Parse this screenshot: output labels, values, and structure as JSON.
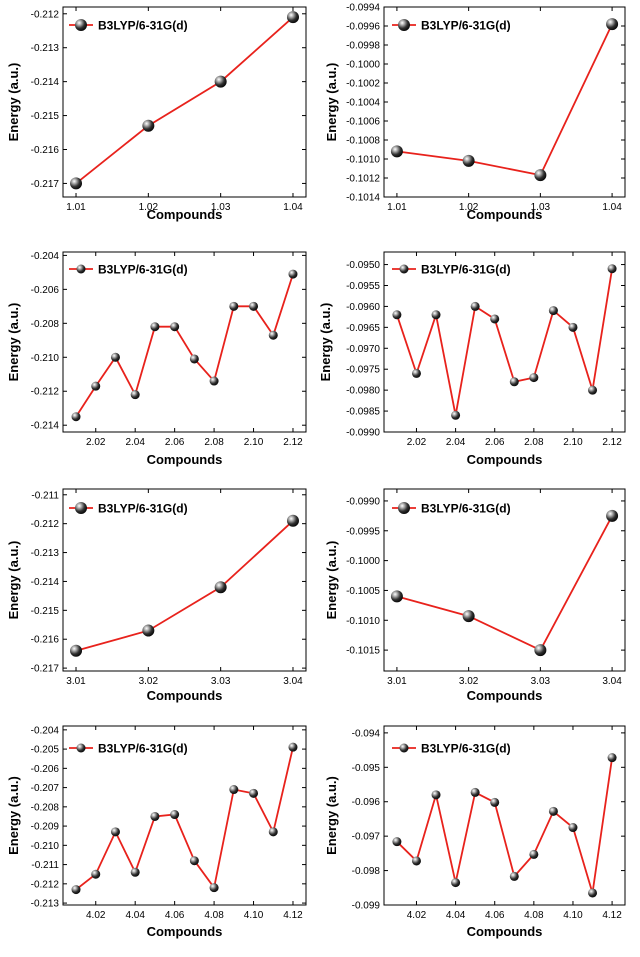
{
  "chart_data": [
    {
      "type": "line",
      "legend": "B3LYP/6-31G(d)",
      "xlabel": "Compounds",
      "ylabel": "Energy (a.u.)",
      "x_ticks": [
        "1.01",
        "1.02",
        "1.03",
        "1.04"
      ],
      "y_ticks": [
        "-0.217",
        "-0.216",
        "-0.215",
        "-0.214",
        "-0.213",
        "-0.212"
      ],
      "ylim": [
        -0.2174,
        -0.2118
      ],
      "x": [
        1.01,
        1.02,
        1.03,
        1.04
      ],
      "values": [
        -0.217,
        -0.2153,
        -0.214,
        -0.2121
      ],
      "marker": "large",
      "legend_position": "top-left"
    },
    {
      "type": "line",
      "legend": "B3LYP/6-31G(d)",
      "xlabel": "Compounds",
      "ylabel": "Energy (a.u.)",
      "x_ticks": [
        "1.01",
        "1.02",
        "1.03",
        "1.04"
      ],
      "y_ticks": [
        "-0.1014",
        "-0.1012",
        "-0.1010",
        "-0.1008",
        "-0.1006",
        "-0.1004",
        "-0.1002",
        "-0.1000",
        "-0.0998",
        "-0.0996",
        "-0.0994"
      ],
      "ylim": [
        -0.1014,
        -0.0994
      ],
      "x": [
        1.01,
        1.02,
        1.03,
        1.04
      ],
      "values": [
        -0.10092,
        -0.10102,
        -0.10117,
        -0.09958
      ],
      "marker": "large",
      "legend_position": "top-left"
    },
    {
      "type": "line",
      "legend": "B3LYP/6-31G(d)",
      "xlabel": "Compounds",
      "ylabel": "Energy (a.u.)",
      "x_ticks": [
        "2.02",
        "2.04",
        "2.06",
        "2.08",
        "2.10",
        "2.12"
      ],
      "y_ticks": [
        "-0.214",
        "-0.212",
        "-0.210",
        "-0.208",
        "-0.206",
        "-0.204"
      ],
      "ylim": [
        -0.2144,
        -0.2038
      ],
      "x": [
        2.01,
        2.02,
        2.03,
        2.04,
        2.05,
        2.06,
        2.07,
        2.08,
        2.09,
        2.1,
        2.11,
        2.12
      ],
      "values": [
        -0.2135,
        -0.2117,
        -0.21,
        -0.2122,
        -0.2082,
        -0.2082,
        -0.2101,
        -0.2114,
        -0.207,
        -0.207,
        -0.2087,
        -0.2051
      ],
      "marker": "small",
      "legend_position": "top-left"
    },
    {
      "type": "line",
      "legend": "B3LYP/6-31G(d)",
      "xlabel": "Compounds",
      "ylabel": "Energy (a.u.)",
      "x_ticks": [
        "2.02",
        "2.04",
        "2.06",
        "2.08",
        "2.10",
        "2.12"
      ],
      "y_ticks": [
        "-0.0990",
        "-0.0985",
        "-0.0980",
        "-0.0975",
        "-0.0970",
        "-0.0965",
        "-0.0960",
        "-0.0955",
        "-0.0950"
      ],
      "ylim": [
        -0.099,
        -0.0947
      ],
      "x": [
        2.01,
        2.02,
        2.03,
        2.04,
        2.05,
        2.06,
        2.07,
        2.08,
        2.09,
        2.1,
        2.11,
        2.12
      ],
      "values": [
        -0.0962,
        -0.0976,
        -0.0962,
        -0.0986,
        -0.096,
        -0.0963,
        -0.0978,
        -0.0977,
        -0.0961,
        -0.0965,
        -0.098,
        -0.0951
      ],
      "marker": "small",
      "legend_position": "top-left"
    },
    {
      "type": "line",
      "legend": "B3LYP/6-31G(d)",
      "xlabel": "Compounds",
      "ylabel": "Energy (a.u.)",
      "x_ticks": [
        "3.01",
        "3.02",
        "3.03",
        "3.04"
      ],
      "y_ticks": [
        "-0.217",
        "-0.216",
        "-0.215",
        "-0.214",
        "-0.213",
        "-0.212",
        "-0.211"
      ],
      "ylim": [
        -0.2171,
        -0.2108
      ],
      "x": [
        3.01,
        3.02,
        3.03,
        3.04
      ],
      "values": [
        -0.2164,
        -0.2157,
        -0.2142,
        -0.2119
      ],
      "marker": "large",
      "legend_position": "top-left"
    },
    {
      "type": "line",
      "legend": "B3LYP/6-31G(d)",
      "xlabel": "Compounds",
      "ylabel": "Energy (a.u.)",
      "x_ticks": [
        "3.01",
        "3.02",
        "3.03",
        "3.04"
      ],
      "y_ticks": [
        "-0.1015",
        "-0.1010",
        "-0.1005",
        "-0.1000",
        "-0.0995",
        "-0.0990"
      ],
      "ylim": [
        -0.10185,
        -0.0988
      ],
      "x": [
        3.01,
        3.02,
        3.03,
        3.04
      ],
      "values": [
        -0.1006,
        -0.10093,
        -0.1015,
        -0.09925
      ],
      "marker": "large",
      "legend_position": "top-left"
    },
    {
      "type": "line",
      "legend": "B3LYP/6-31G(d)",
      "xlabel": "Compounds",
      "ylabel": "Energy (a.u.)",
      "x_ticks": [
        "4.02",
        "4.04",
        "4.06",
        "4.08",
        "4.10",
        "4.12"
      ],
      "y_ticks": [
        "-0.213",
        "-0.212",
        "-0.211",
        "-0.210",
        "-0.209",
        "-0.208",
        "-0.207",
        "-0.206",
        "-0.205",
        "-0.204"
      ],
      "ylim": [
        -0.2131,
        -0.2038
      ],
      "x": [
        4.01,
        4.02,
        4.03,
        4.04,
        4.05,
        4.06,
        4.07,
        4.08,
        4.09,
        4.1,
        4.11,
        4.12
      ],
      "values": [
        -0.2123,
        -0.2115,
        -0.2093,
        -0.2114,
        -0.2085,
        -0.2084,
        -0.2108,
        -0.2122,
        -0.2071,
        -0.2073,
        -0.2093,
        -0.2049
      ],
      "marker": "small",
      "legend_position": "top-left"
    },
    {
      "type": "line",
      "legend": "B3LYP/6-31G(d)",
      "xlabel": "Compounds",
      "ylabel": "Energy (a.u.)",
      "x_ticks": [
        "4.02",
        "4.04",
        "4.06",
        "4.08",
        "4.10",
        "4.12"
      ],
      "y_ticks": [
        "-0.099",
        "-0.098",
        "-0.097",
        "-0.096",
        "-0.095",
        "-0.094"
      ],
      "ylim": [
        -0.099,
        -0.0938
      ],
      "x": [
        4.01,
        4.02,
        4.03,
        4.04,
        4.05,
        4.06,
        4.07,
        4.08,
        4.09,
        4.1,
        4.11,
        4.12
      ],
      "values": [
        -0.09716,
        -0.09772,
        -0.0958,
        -0.09835,
        -0.09573,
        -0.09602,
        -0.09817,
        -0.09753,
        -0.09628,
        -0.09675,
        -0.09865,
        -0.09472
      ],
      "marker": "small",
      "legend_position": "top-left"
    }
  ]
}
